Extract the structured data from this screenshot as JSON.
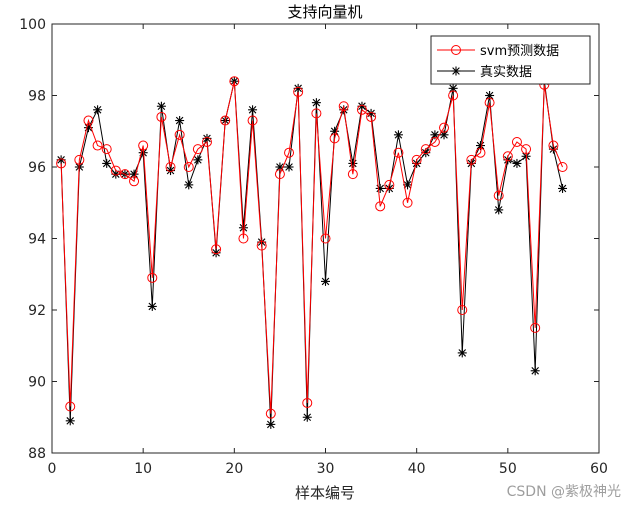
{
  "chart_data": {
    "type": "line",
    "title": "支持向量机",
    "xlabel": "样本编号",
    "ylabel": "",
    "xlim": [
      0,
      60
    ],
    "ylim": [
      88,
      100
    ],
    "xticks": [
      0,
      10,
      20,
      30,
      40,
      50,
      60
    ],
    "yticks": [
      88,
      90,
      92,
      94,
      96,
      98,
      100
    ],
    "grid": false,
    "legend_position": "top-right",
    "x": [
      1,
      2,
      3,
      4,
      5,
      6,
      7,
      8,
      9,
      10,
      11,
      12,
      13,
      14,
      15,
      16,
      17,
      18,
      19,
      20,
      21,
      22,
      23,
      24,
      25,
      26,
      27,
      28,
      29,
      30,
      31,
      32,
      33,
      34,
      35,
      36,
      37,
      38,
      39,
      40,
      41,
      42,
      43,
      44,
      45,
      46,
      47,
      48,
      49,
      50,
      51,
      52,
      53,
      54,
      55,
      56
    ],
    "series": [
      {
        "name": "svm预测数据",
        "color": "#ff0000",
        "marker": "circle",
        "values": [
          96.1,
          89.3,
          96.2,
          97.3,
          96.6,
          96.5,
          95.9,
          95.8,
          95.6,
          96.6,
          92.9,
          97.4,
          96.0,
          96.9,
          96.0,
          96.5,
          96.7,
          93.7,
          97.3,
          98.4,
          94.0,
          97.3,
          93.8,
          89.1,
          95.8,
          96.4,
          98.1,
          89.4,
          97.5,
          94.0,
          96.8,
          97.7,
          95.8,
          97.6,
          97.4,
          94.9,
          95.5,
          96.4,
          95.0,
          96.2,
          96.5,
          96.7,
          97.1,
          98.0,
          92.0,
          96.2,
          96.4,
          97.8,
          95.2,
          96.3,
          96.7,
          96.5,
          91.5,
          98.3,
          96.6,
          96.0
        ]
      },
      {
        "name": "真实数据",
        "color": "#000000",
        "marker": "star",
        "values": [
          96.2,
          88.9,
          96.0,
          97.1,
          97.6,
          96.1,
          95.8,
          95.8,
          95.8,
          96.4,
          92.1,
          97.7,
          95.9,
          97.3,
          95.5,
          96.2,
          96.8,
          93.6,
          97.3,
          98.4,
          94.3,
          97.6,
          93.9,
          88.8,
          96.0,
          96.0,
          98.2,
          89.0,
          97.8,
          92.8,
          97.0,
          97.6,
          96.1,
          97.7,
          97.5,
          95.4,
          95.4,
          96.9,
          95.5,
          96.1,
          96.4,
          96.9,
          96.9,
          98.2,
          90.8,
          96.1,
          96.6,
          98.0,
          94.8,
          96.2,
          96.1,
          96.3,
          90.3,
          98.4,
          96.5,
          95.4
        ]
      }
    ]
  },
  "watermark": "CSDN @紫极神光"
}
